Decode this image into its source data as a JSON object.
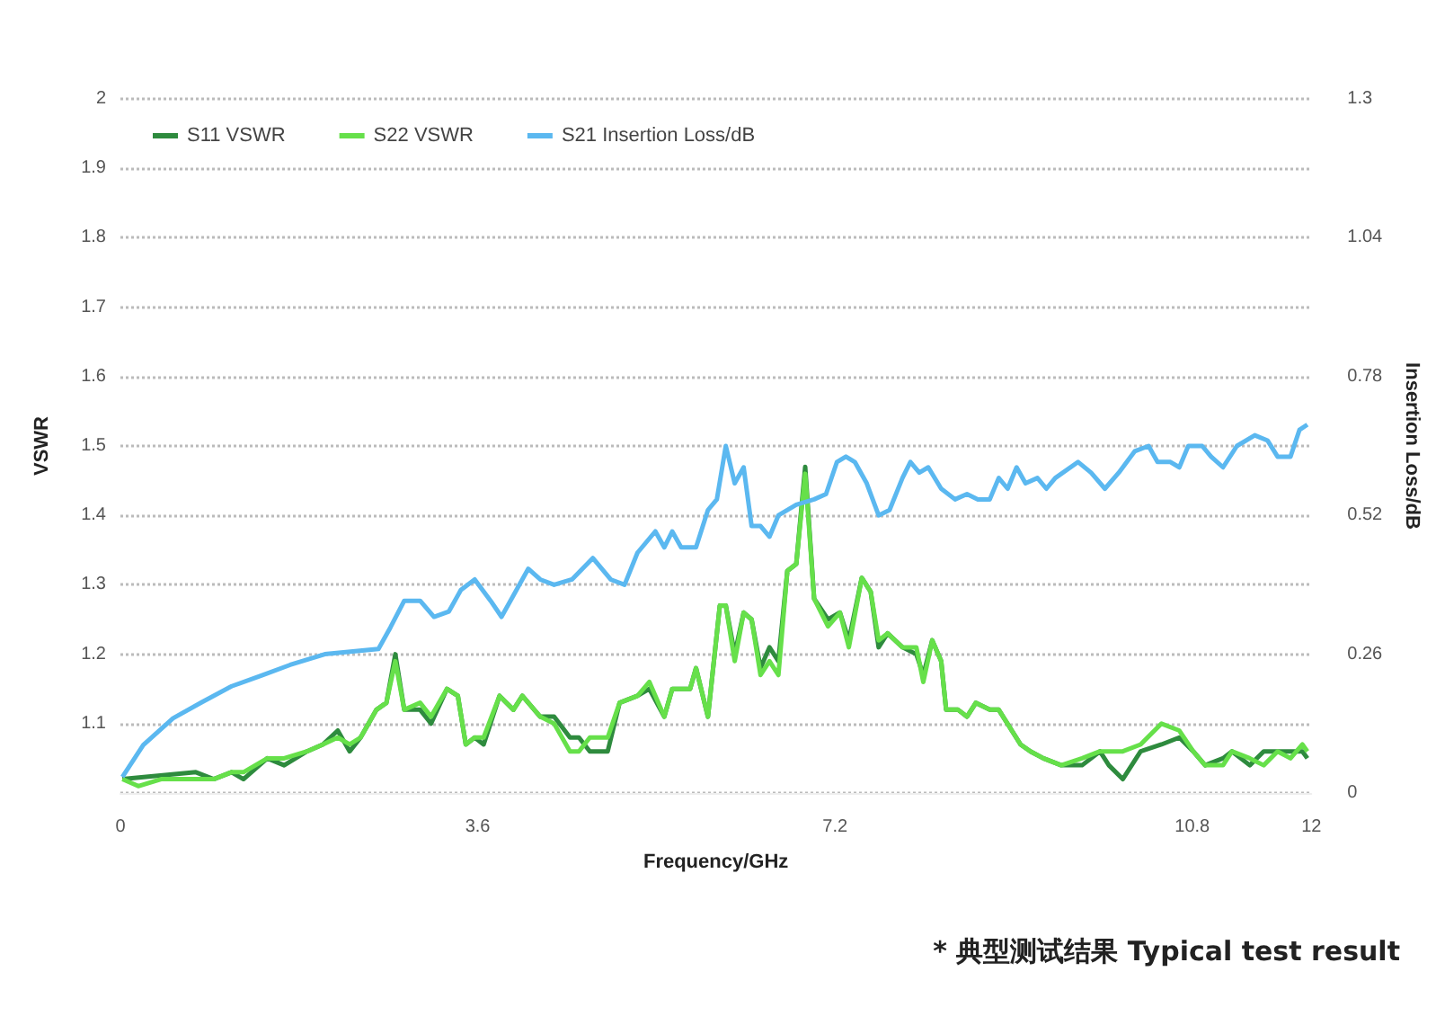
{
  "chart_data": {
    "type": "line",
    "xlabel": "Frequency/GHz",
    "ylabel": "VSWR",
    "y2label": "Insertion Loss/dB",
    "annotations": [
      "* 典型测试结果 Typical test result"
    ],
    "xlim": [
      0,
      12
    ],
    "xticks": [
      0,
      3.6,
      7.2,
      10.8,
      12
    ],
    "ylim": [
      1,
      2
    ],
    "yticks": [
      {
        "value": 1,
        "label": null
      },
      1.1,
      1.2,
      1.3,
      1.4,
      1.5,
      1.6,
      1.7,
      1.8,
      1.9,
      2
    ],
    "y2lim": [
      0,
      1.3
    ],
    "y2ticks": [
      0,
      0.26,
      0.52,
      0.78,
      1.04,
      1.3
    ],
    "grid": "y",
    "legend": "top left",
    "marker": "none",
    "line_style": "solid",
    "series": [
      {
        "name": "S11 VSWR",
        "color": "#2e8b3e",
        "x": [
          0.02,
          0.76,
          0.94,
          1.12,
          1.24,
          1.48,
          1.65,
          1.88,
          2.04,
          2.19,
          2.31,
          2.42,
          2.58,
          2.68,
          2.77,
          2.86,
          3.02,
          3.13,
          3.29,
          3.4,
          3.48,
          3.57,
          3.66,
          3.82,
          3.96,
          4.05,
          4.23,
          4.37,
          4.53,
          4.62,
          4.73,
          4.91,
          5.03,
          5.21,
          5.33,
          5.48,
          5.56,
          5.74,
          5.8,
          5.92,
          6.04,
          6.1,
          6.19,
          6.28,
          6.36,
          6.45,
          6.54,
          6.63,
          6.72,
          6.81,
          6.9,
          6.99,
          7.13,
          7.25,
          7.34,
          7.47,
          7.56,
          7.64,
          7.73,
          7.88,
          8.02,
          8.09,
          8.18,
          8.27,
          8.32,
          8.44,
          8.53,
          8.62,
          8.76,
          8.85,
          9.07,
          9.17,
          9.3,
          9.48,
          9.69,
          9.87,
          9.96,
          10.1,
          10.28,
          10.49,
          10.67,
          10.81,
          10.93,
          11.11,
          11.2,
          11.38,
          11.52,
          11.66,
          11.79,
          11.91,
          11.96
        ],
        "values": [
          1.02,
          1.03,
          1.02,
          1.03,
          1.02,
          1.05,
          1.04,
          1.06,
          1.07,
          1.09,
          1.06,
          1.08,
          1.12,
          1.13,
          1.2,
          1.12,
          1.12,
          1.1,
          1.15,
          1.14,
          1.07,
          1.08,
          1.07,
          1.14,
          1.12,
          1.14,
          1.11,
          1.11,
          1.08,
          1.08,
          1.06,
          1.06,
          1.13,
          1.14,
          1.15,
          1.11,
          1.15,
          1.15,
          1.18,
          1.11,
          1.27,
          1.27,
          1.2,
          1.26,
          1.25,
          1.18,
          1.21,
          1.19,
          1.32,
          1.33,
          1.47,
          1.28,
          1.25,
          1.26,
          1.22,
          1.31,
          1.29,
          1.21,
          1.23,
          1.21,
          1.2,
          1.17,
          1.22,
          1.19,
          1.12,
          1.12,
          1.11,
          1.13,
          1.12,
          1.12,
          1.07,
          1.06,
          1.05,
          1.04,
          1.04,
          1.06,
          1.04,
          1.02,
          1.06,
          1.07,
          1.08,
          1.06,
          1.04,
          1.05,
          1.06,
          1.04,
          1.06,
          1.06,
          1.06,
          1.06,
          1.05
        ]
      },
      {
        "name": "S22 VSWR",
        "color": "#66e04a",
        "x": [
          0.02,
          0.18,
          0.41,
          0.76,
          0.94,
          1.12,
          1.24,
          1.48,
          1.65,
          1.88,
          2.04,
          2.19,
          2.31,
          2.42,
          2.58,
          2.68,
          2.77,
          2.86,
          3.02,
          3.13,
          3.29,
          3.4,
          3.48,
          3.57,
          3.66,
          3.82,
          3.96,
          4.05,
          4.23,
          4.37,
          4.53,
          4.62,
          4.73,
          4.91,
          5.03,
          5.21,
          5.33,
          5.48,
          5.56,
          5.74,
          5.8,
          5.92,
          6.04,
          6.1,
          6.19,
          6.28,
          6.36,
          6.45,
          6.54,
          6.63,
          6.72,
          6.81,
          6.9,
          6.99,
          7.13,
          7.25,
          7.34,
          7.47,
          7.56,
          7.64,
          7.73,
          7.88,
          8.02,
          8.09,
          8.18,
          8.27,
          8.32,
          8.44,
          8.53,
          8.62,
          8.76,
          8.85,
          9.07,
          9.17,
          9.3,
          9.48,
          9.69,
          9.87,
          10.1,
          10.28,
          10.49,
          10.67,
          10.81,
          10.93,
          11.11,
          11.2,
          11.38,
          11.52,
          11.66,
          11.79,
          11.91,
          11.96
        ],
        "values": [
          1.02,
          1.01,
          1.02,
          1.02,
          1.02,
          1.03,
          1.03,
          1.05,
          1.05,
          1.06,
          1.07,
          1.08,
          1.07,
          1.08,
          1.12,
          1.13,
          1.19,
          1.12,
          1.13,
          1.11,
          1.15,
          1.14,
          1.07,
          1.08,
          1.08,
          1.14,
          1.12,
          1.14,
          1.11,
          1.1,
          1.06,
          1.06,
          1.08,
          1.08,
          1.13,
          1.14,
          1.16,
          1.11,
          1.15,
          1.15,
          1.18,
          1.11,
          1.27,
          1.27,
          1.19,
          1.26,
          1.25,
          1.17,
          1.19,
          1.17,
          1.32,
          1.33,
          1.46,
          1.28,
          1.24,
          1.26,
          1.21,
          1.31,
          1.29,
          1.22,
          1.23,
          1.21,
          1.21,
          1.16,
          1.22,
          1.19,
          1.12,
          1.12,
          1.11,
          1.13,
          1.12,
          1.12,
          1.07,
          1.06,
          1.05,
          1.04,
          1.05,
          1.06,
          1.06,
          1.07,
          1.1,
          1.09,
          1.06,
          1.04,
          1.04,
          1.06,
          1.05,
          1.04,
          1.06,
          1.05,
          1.07,
          1.06
        ]
      },
      {
        "name": "S21 Insertion Loss/dB",
        "color": "#5bb8f0",
        "axis": "y2",
        "x": [
          0.02,
          0.23,
          0.53,
          0.82,
          1.12,
          1.42,
          1.71,
          2.06,
          2.6,
          2.72,
          2.86,
          3.02,
          3.16,
          3.31,
          3.43,
          3.57,
          3.73,
          3.84,
          3.96,
          4.11,
          4.23,
          4.37,
          4.55,
          4.76,
          4.94,
          5.08,
          5.21,
          5.39,
          5.48,
          5.56,
          5.65,
          5.8,
          5.92,
          6.01,
          6.1,
          6.19,
          6.28,
          6.36,
          6.45,
          6.54,
          6.63,
          6.81,
          6.99,
          7.11,
          7.22,
          7.31,
          7.4,
          7.52,
          7.64,
          7.75,
          7.88,
          7.96,
          8.05,
          8.14,
          8.27,
          8.41,
          8.53,
          8.64,
          8.76,
          8.85,
          8.94,
          9.03,
          9.12,
          9.24,
          9.33,
          9.42,
          9.65,
          9.78,
          9.92,
          10.06,
          10.22,
          10.36,
          10.45,
          10.58,
          10.67,
          10.76,
          10.9,
          10.99,
          11.11,
          11.25,
          11.43,
          11.56,
          11.66,
          11.79,
          11.88,
          11.96
        ],
        "values": [
          0.03,
          0.09,
          0.14,
          0.17,
          0.2,
          0.22,
          0.24,
          0.26,
          0.27,
          0.31,
          0.36,
          0.36,
          0.33,
          0.34,
          0.38,
          0.4,
          0.36,
          0.33,
          0.37,
          0.42,
          0.4,
          0.39,
          0.4,
          0.44,
          0.4,
          0.39,
          0.45,
          0.49,
          0.46,
          0.49,
          0.46,
          0.46,
          0.53,
          0.55,
          0.65,
          0.58,
          0.61,
          0.5,
          0.5,
          0.48,
          0.52,
          0.54,
          0.55,
          0.56,
          0.62,
          0.63,
          0.62,
          0.58,
          0.52,
          0.53,
          0.59,
          0.62,
          0.6,
          0.61,
          0.57,
          0.55,
          0.56,
          0.55,
          0.55,
          0.59,
          0.57,
          0.61,
          0.58,
          0.59,
          0.57,
          0.59,
          0.62,
          0.6,
          0.57,
          0.6,
          0.64,
          0.65,
          0.62,
          0.62,
          0.61,
          0.65,
          0.65,
          0.63,
          0.61,
          0.65,
          0.67,
          0.66,
          0.63,
          0.63,
          0.68,
          0.69
        ]
      }
    ]
  }
}
